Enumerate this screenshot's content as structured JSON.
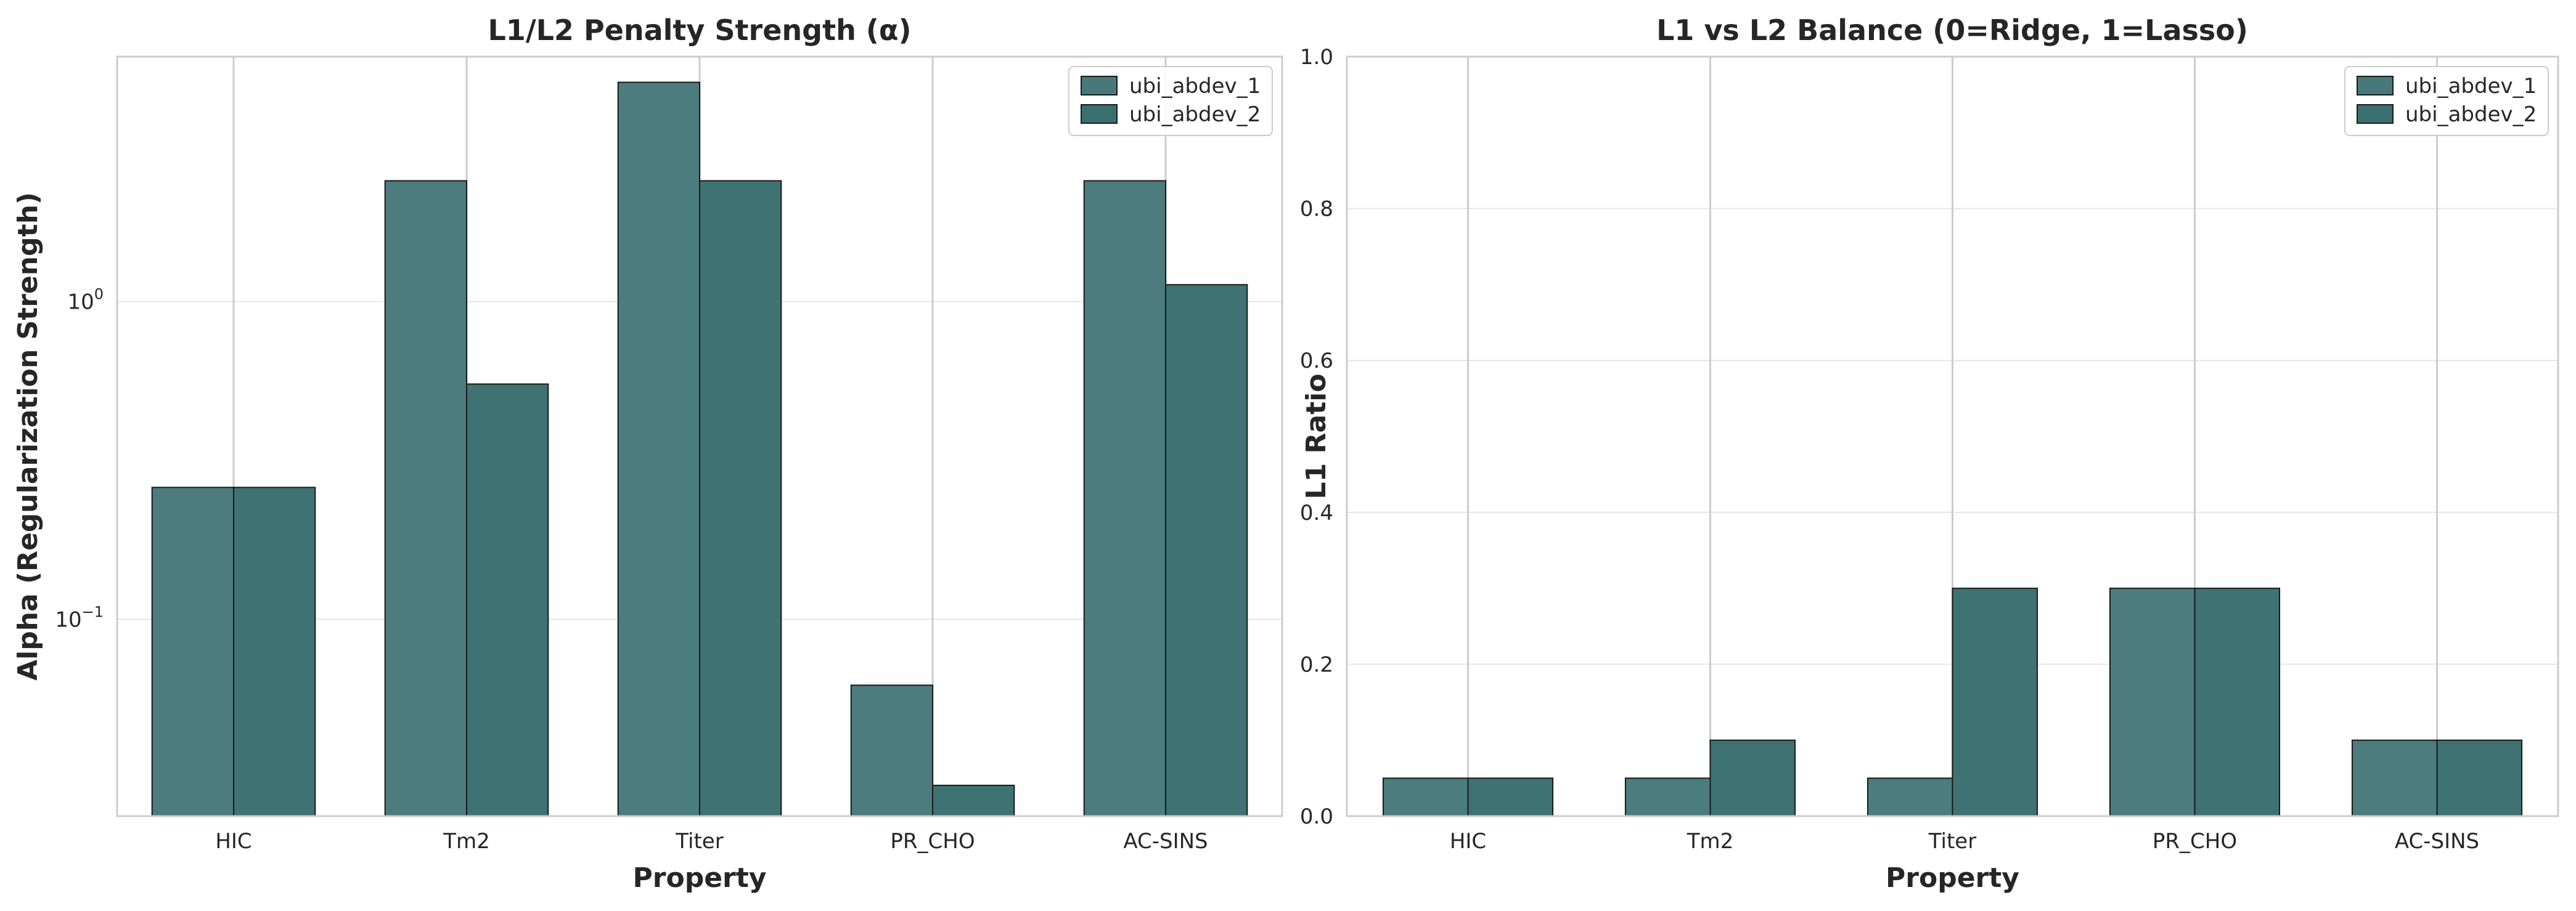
{
  "colors": {
    "series1": "#48797a",
    "series2": "#3b6f6f",
    "edge": "#1a1a1a"
  },
  "chart_data": [
    {
      "type": "bar",
      "yscale": "log",
      "title": "L1/L2 Penalty Strength (α)",
      "xlabel": "Property",
      "ylabel": "Alpha (Regularization Strength)",
      "categories": [
        "HIC",
        "Tm2",
        "Titer",
        "PR_CHO",
        "AC-SINS"
      ],
      "series": [
        {
          "name": "ubi_abdev_1",
          "values": [
            0.26,
            2.4,
            4.9,
            0.062,
            2.4
          ]
        },
        {
          "name": "ubi_abdev_2",
          "values": [
            0.26,
            0.55,
            2.4,
            0.03,
            1.13
          ]
        }
      ],
      "ylim": [
        0.024,
        5.9
      ],
      "yticks": [
        {
          "value": 1,
          "base": "10",
          "exp": "0"
        },
        {
          "value": 0.1,
          "base": "10",
          "exp": "−1"
        }
      ],
      "legend": "top-right",
      "grid": true
    },
    {
      "type": "bar",
      "yscale": "linear",
      "title": "L1 vs L2 Balance (0=Ridge, 1=Lasso)",
      "xlabel": "Property",
      "ylabel": "L1 Ratio",
      "categories": [
        "HIC",
        "Tm2",
        "Titer",
        "PR_CHO",
        "AC-SINS"
      ],
      "series": [
        {
          "name": "ubi_abdev_1",
          "values": [
            0.05,
            0.05,
            0.05,
            0.3,
            0.1
          ]
        },
        {
          "name": "ubi_abdev_2",
          "values": [
            0.05,
            0.1,
            0.3,
            0.3,
            0.1
          ]
        }
      ],
      "ylim": [
        0,
        1.0
      ],
      "yticks": [
        {
          "value": 0,
          "label": "0.0"
        },
        {
          "value": 0.2,
          "label": "0.2"
        },
        {
          "value": 0.4,
          "label": "0.4"
        },
        {
          "value": 0.6,
          "label": "0.6"
        },
        {
          "value": 0.8,
          "label": "0.8"
        },
        {
          "value": 1.0,
          "label": "1.0"
        }
      ],
      "legend": "top-right",
      "grid": true
    }
  ]
}
